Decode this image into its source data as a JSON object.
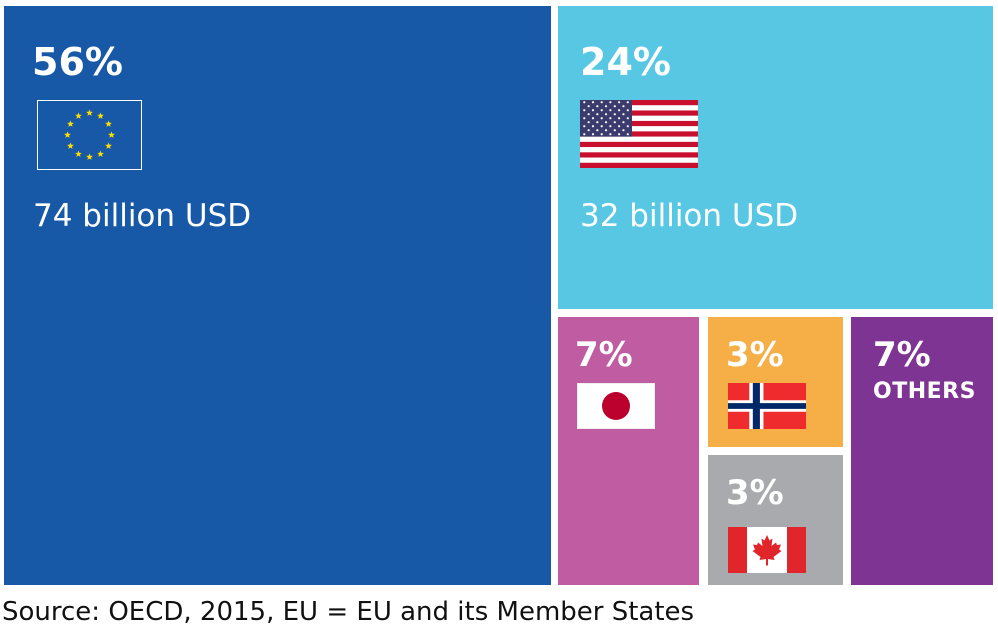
{
  "chart_data": {
    "type": "treemap",
    "entries": [
      {
        "key": "eu",
        "percent_label": "56%",
        "value": 56,
        "amount": "74 billion USD",
        "color": "#1759a6",
        "flag": "eu-flag"
      },
      {
        "key": "us",
        "percent_label": "24%",
        "value": 24,
        "amount": "32 billion USD",
        "color": "#57c7e3",
        "flag": "us-flag"
      },
      {
        "key": "japan",
        "percent_label": "7%",
        "value": 7,
        "color": "#bf5ca2",
        "flag": "japan-flag"
      },
      {
        "key": "norway",
        "percent_label": "3%",
        "value": 3,
        "color": "#f6ae47",
        "flag": "norway-flag"
      },
      {
        "key": "canada",
        "percent_label": "3%",
        "value": 3,
        "color": "#a9aaad",
        "flag": "canada-flag"
      },
      {
        "key": "others",
        "percent_label": "7%",
        "value": 7,
        "label": "OTHERS",
        "color": "#7e3492"
      }
    ]
  },
  "source": "Source: OECD, 2015, EU = EU and its Member States"
}
